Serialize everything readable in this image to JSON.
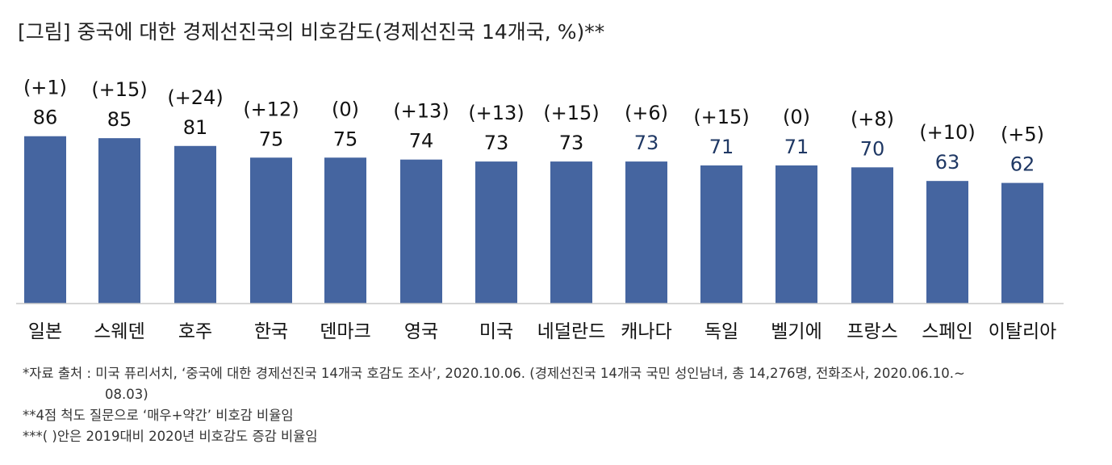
{
  "title": "[그림] 중국에 대한 경제선진국의 비호감도(경제선진국 14개국, %)**",
  "chart_data": {
    "type": "bar",
    "categories": [
      "일본",
      "스웨덴",
      "호주",
      "한국",
      "덴마크",
      "영국",
      "미국",
      "네덜란드",
      "캐나다",
      "독일",
      "벨기에",
      "프랑스",
      "스페인",
      "이탈리아"
    ],
    "values": [
      86,
      85,
      81,
      75,
      75,
      74,
      73,
      73,
      73,
      71,
      71,
      70,
      63,
      62
    ],
    "change_labels": [
      "(+1)",
      "(+15)",
      "(+24)",
      "(+12)",
      "(0)",
      "(+13)",
      "(+13)",
      "(+15)",
      "(+6)",
      "(+15)",
      "(0)",
      "(+8)",
      "(+10)",
      "(+5)"
    ],
    "value_label_colors": [
      "#111111",
      "#111111",
      "#111111",
      "#111111",
      "#111111",
      "#111111",
      "#111111",
      "#111111",
      "#1f3864",
      "#1f3864",
      "#1f3864",
      "#1f3864",
      "#1f3864",
      "#1f3864"
    ],
    "ylim": [
      0,
      100
    ],
    "bar_color": "#4565a0",
    "grid": false
  },
  "notes": [
    "*자료 출처 : 미국 퓨리서치, ‘중국에 대한 경제선진국 14개국 호감도 조사’, 2020.10.06. (경제선진국 14개국 국민 성인남녀, 총 14,276명, 전화조사, 2020.06.10.~",
    "08.03)",
    "**4점 척도 질문으로 ‘매우+약간’ 비호감 비율임",
    "***(    )안은 2019대비 2020년 비호감도 증감 비율임"
  ]
}
